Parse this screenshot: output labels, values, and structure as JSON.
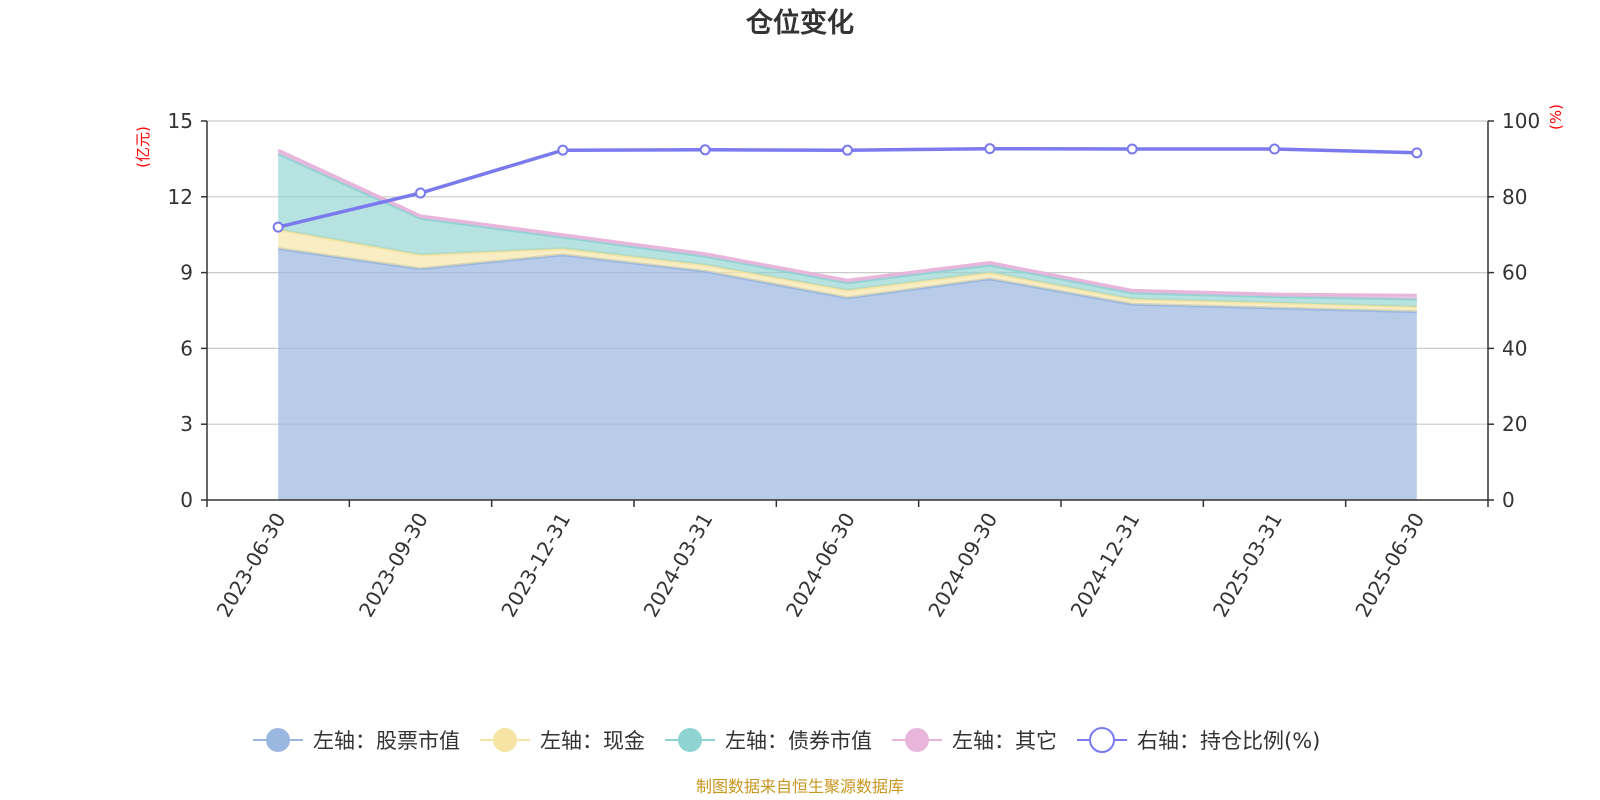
{
  "chart_data": {
    "type": "area",
    "title": "仓位变化",
    "categories": [
      "2023-06-30",
      "2023-09-30",
      "2023-12-31",
      "2024-03-31",
      "2024-06-30",
      "2024-09-30",
      "2024-12-31",
      "2025-03-31",
      "2025-06-30"
    ],
    "left_axis": {
      "unit": "(亿元)",
      "ylim": [
        0,
        15
      ],
      "ticks": [
        "0",
        "3",
        "6",
        "9",
        "12",
        "15"
      ],
      "tick_values": [
        0,
        3,
        6,
        9,
        12,
        15
      ]
    },
    "right_axis": {
      "unit": "(%)",
      "ylim": [
        0,
        100
      ],
      "ticks": [
        "0",
        "20",
        "40",
        "60",
        "80",
        "100"
      ],
      "tick_values": [
        0,
        20,
        40,
        60,
        80,
        100
      ]
    },
    "grid": true,
    "stacked": true,
    "series": [
      {
        "name": "左轴：股票市值",
        "axis": "left",
        "color": "#9ab7e0",
        "values": [
          9.95,
          9.15,
          9.7,
          9.05,
          8.0,
          8.75,
          7.75,
          7.6,
          7.45
        ]
      },
      {
        "name": "左轴：现金",
        "axis": "left",
        "color": "#f5e4a3",
        "values": [
          0.75,
          0.55,
          0.25,
          0.25,
          0.3,
          0.25,
          0.2,
          0.2,
          0.2
        ]
      },
      {
        "name": "左轴：债券市值",
        "axis": "left",
        "color": "#8fd3d3",
        "values": [
          3.0,
          1.45,
          0.45,
          0.35,
          0.3,
          0.3,
          0.25,
          0.25,
          0.3
        ]
      },
      {
        "name": "左轴：其它",
        "axis": "left",
        "color": "#e9b6db",
        "values": [
          0.15,
          0.1,
          0.1,
          0.1,
          0.1,
          0.1,
          0.1,
          0.1,
          0.15
        ]
      },
      {
        "name": "右轴：持仓比例(%)",
        "axis": "right",
        "type": "line",
        "color": "#7a7aee",
        "values": [
          72.0,
          81.0,
          92.3,
          92.4,
          92.3,
          92.7,
          92.6,
          92.6,
          91.6
        ]
      }
    ],
    "legend_position": "bottom",
    "source_note": "制图数据来自恒生聚源数据库"
  }
}
